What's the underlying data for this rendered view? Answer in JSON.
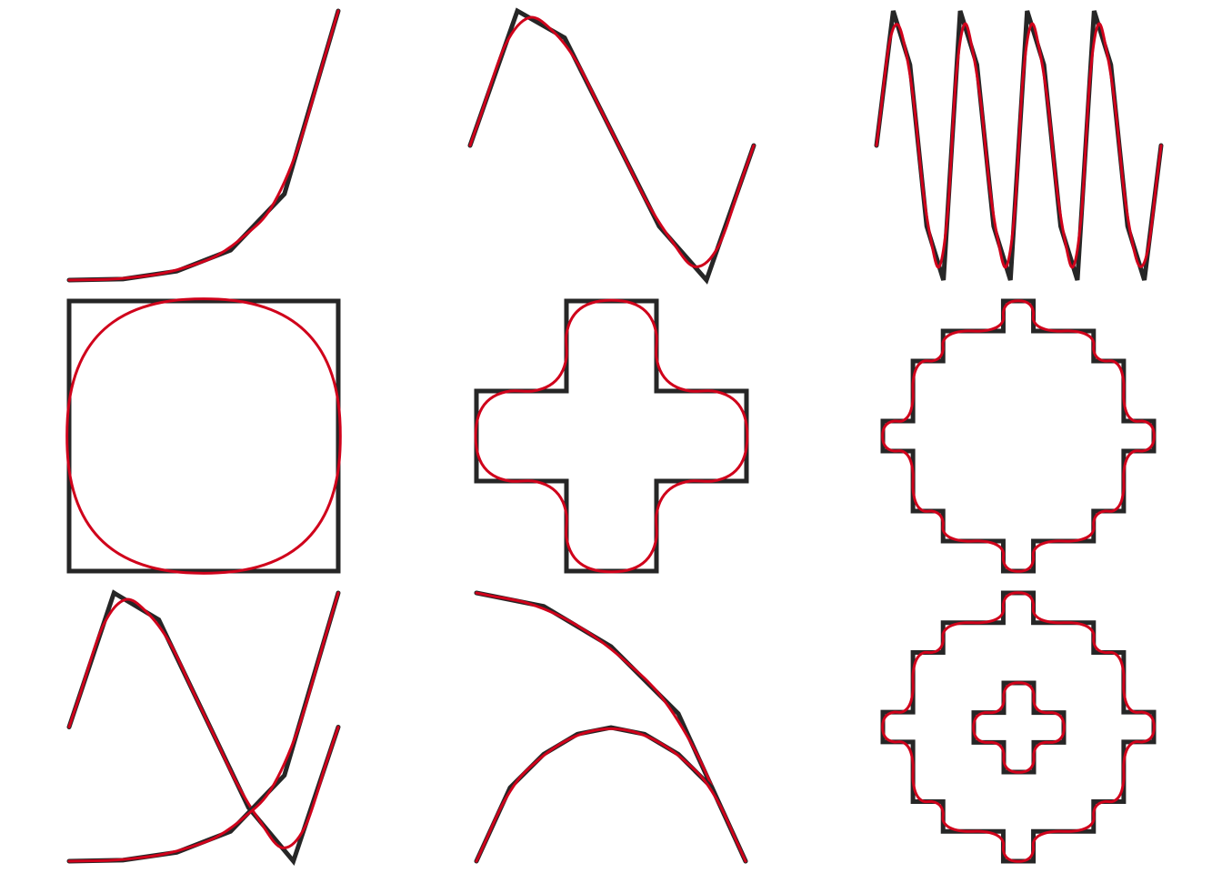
{
  "colors": {
    "background": "#ffffff",
    "control_polygon": "#262626",
    "smoothed_curve": "#d0021b"
  },
  "panels": [
    {
      "name": "exponential-curve",
      "closed": false,
      "points": [
        [
          0,
          0
        ],
        [
          1,
          0.004
        ],
        [
          2,
          0.033
        ],
        [
          3,
          0.111
        ],
        [
          4,
          0.32
        ],
        [
          5,
          1
        ]
      ]
    },
    {
      "name": "sine-wave",
      "closed": false,
      "points": [
        [
          0,
          0
        ],
        [
          1,
          1
        ],
        [
          2,
          0.8
        ],
        [
          3,
          0.1
        ],
        [
          4,
          -0.6
        ],
        [
          5,
          -1
        ],
        [
          6,
          0
        ]
      ]
    },
    {
      "name": "zigzag-wave",
      "closed": false,
      "points": [
        [
          0,
          0
        ],
        [
          1,
          1
        ],
        [
          2,
          0.6
        ],
        [
          3,
          -0.6
        ],
        [
          4,
          -1
        ],
        [
          5,
          1
        ],
        [
          6,
          0.6
        ],
        [
          7,
          -0.6
        ],
        [
          8,
          -1
        ],
        [
          9,
          1
        ],
        [
          10,
          0.6
        ],
        [
          11,
          -0.6
        ],
        [
          12,
          -1
        ],
        [
          13,
          1
        ],
        [
          14,
          0.6
        ],
        [
          15,
          -0.6
        ],
        [
          16,
          -1
        ],
        [
          17,
          0
        ]
      ]
    },
    {
      "name": "square",
      "closed": true,
      "points": [
        [
          0,
          0
        ],
        [
          1,
          0
        ],
        [
          1,
          1
        ],
        [
          0,
          1
        ]
      ]
    },
    {
      "name": "plus-cross",
      "closed": true,
      "points": [
        [
          1,
          0
        ],
        [
          2,
          0
        ],
        [
          2,
          1
        ],
        [
          3,
          1
        ],
        [
          3,
          2
        ],
        [
          2,
          2
        ],
        [
          2,
          3
        ],
        [
          1,
          3
        ],
        [
          1,
          2
        ],
        [
          0,
          2
        ],
        [
          0,
          1
        ],
        [
          1,
          1
        ]
      ]
    },
    {
      "name": "stepped-octagon",
      "closed": true,
      "points": [
        [
          4,
          0
        ],
        [
          5,
          0
        ],
        [
          5,
          1
        ],
        [
          7,
          1
        ],
        [
          7,
          2
        ],
        [
          8,
          2
        ],
        [
          8,
          4
        ],
        [
          9,
          4
        ],
        [
          9,
          5
        ],
        [
          8,
          5
        ],
        [
          8,
          7
        ],
        [
          7,
          7
        ],
        [
          7,
          8
        ],
        [
          5,
          8
        ],
        [
          5,
          9
        ],
        [
          4,
          9
        ],
        [
          4,
          8
        ],
        [
          2,
          8
        ],
        [
          2,
          7
        ],
        [
          1,
          7
        ],
        [
          1,
          5
        ],
        [
          0,
          5
        ],
        [
          0,
          4
        ],
        [
          1,
          4
        ],
        [
          1,
          2
        ],
        [
          2,
          2
        ],
        [
          2,
          1
        ],
        [
          4,
          1
        ]
      ]
    },
    {
      "name": "crossing-curves",
      "closed": false,
      "points": [
        [
          0,
          0
        ],
        [
          1,
          1
        ],
        [
          2,
          0.8
        ],
        [
          3,
          0.1
        ],
        [
          4,
          -0.6
        ],
        [
          5,
          -1
        ],
        [
          6,
          0
        ]
      ]
    },
    {
      "name": "nested-arcs",
      "closed": false,
      "points": [
        [
          0,
          1
        ],
        [
          1,
          0.95
        ],
        [
          2,
          0.8
        ],
        [
          3,
          0.55
        ],
        [
          4,
          0
        ]
      ]
    },
    {
      "name": "octagon-with-cross",
      "closed": true,
      "points": [
        [
          4,
          0
        ],
        [
          5,
          0
        ],
        [
          5,
          1
        ],
        [
          7,
          1
        ],
        [
          7,
          2
        ],
        [
          8,
          2
        ],
        [
          8,
          4
        ],
        [
          9,
          4
        ],
        [
          9,
          5
        ],
        [
          8,
          5
        ],
        [
          8,
          7
        ],
        [
          7,
          7
        ],
        [
          7,
          8
        ],
        [
          5,
          8
        ],
        [
          5,
          9
        ],
        [
          4,
          9
        ],
        [
          4,
          8
        ],
        [
          2,
          8
        ],
        [
          2,
          7
        ],
        [
          1,
          7
        ],
        [
          1,
          5
        ],
        [
          0,
          5
        ],
        [
          0,
          4
        ],
        [
          1,
          4
        ],
        [
          1,
          2
        ],
        [
          2,
          2
        ],
        [
          2,
          1
        ],
        [
          4,
          1
        ]
      ]
    }
  ],
  "overlays": [
    {
      "panel": "crossing-curves",
      "closed": false,
      "points": [
        [
          0,
          0
        ],
        [
          1,
          0.004
        ],
        [
          2,
          0.033
        ],
        [
          3,
          0.111
        ],
        [
          4,
          0.32
        ],
        [
          5,
          1
        ]
      ]
    },
    {
      "panel": "nested-arcs",
      "closed": false,
      "points": [
        [
          0,
          0
        ],
        [
          1,
          0.55
        ],
        [
          2,
          0.8
        ],
        [
          3,
          0.95
        ],
        [
          4,
          1
        ],
        [
          5,
          0.95
        ],
        [
          6,
          0.8
        ],
        [
          7,
          0.55
        ],
        [
          8,
          0
        ]
      ]
    },
    {
      "panel": "octagon-with-cross",
      "closed": true,
      "points": [
        [
          1,
          0
        ],
        [
          2,
          0
        ],
        [
          2,
          1
        ],
        [
          3,
          1
        ],
        [
          3,
          2
        ],
        [
          2,
          2
        ],
        [
          2,
          3
        ],
        [
          1,
          3
        ],
        [
          1,
          2
        ],
        [
          0,
          2
        ],
        [
          0,
          1
        ],
        [
          1,
          1
        ]
      ]
    }
  ]
}
